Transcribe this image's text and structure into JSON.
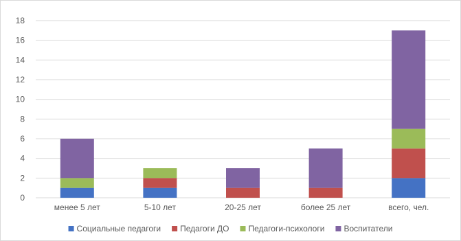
{
  "chart_data": {
    "type": "bar",
    "stacked": true,
    "categories": [
      "менее 5 лет",
      "5-10 лет",
      "20-25 лет",
      "более 25 лет",
      "всего, чел."
    ],
    "series": [
      {
        "name": "Социальные педагоги",
        "color": "#4472C4",
        "values": [
          1,
          1,
          0,
          0,
          2
        ]
      },
      {
        "name": "Педагоги ДО",
        "color": "#C0504D",
        "values": [
          0,
          1,
          1,
          1,
          3
        ]
      },
      {
        "name": "Педагоги-психологи",
        "color": "#9BBB59",
        "values": [
          1,
          1,
          0,
          0,
          2
        ]
      },
      {
        "name": "Воспитатели",
        "color": "#8064A2",
        "values": [
          4,
          0,
          2,
          4,
          10
        ]
      }
    ],
    "ylim": [
      0,
      18
    ],
    "yticks": [
      0,
      2,
      4,
      6,
      8,
      10,
      12,
      14,
      16,
      18
    ],
    "grid": true,
    "legend_position": "bottom",
    "title": "",
    "xlabel": "",
    "ylabel": ""
  }
}
